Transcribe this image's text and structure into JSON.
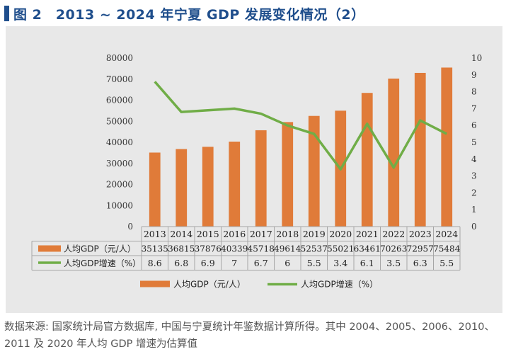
{
  "title": "图 2　2013 ~ 2024 年宁夏 GDP 发展变化情况（2）",
  "source_note": "数据来源: 国家统计局官方数据库, 中国与宁夏统计年鉴数据计算所得。其中 2004、2005、2006、2010、2011 及 2020 年人均 GDP 增速为估算值",
  "colors": {
    "bar": "#e07b39",
    "line": "#70ad47",
    "title": "#1f4e8c",
    "panel": "#e8e8e8"
  },
  "chart_data": {
    "type": "bar",
    "categories": [
      "2013",
      "2014",
      "2015",
      "2016",
      "2017",
      "2018",
      "2019",
      "2020",
      "2021",
      "2022",
      "2023",
      "2024"
    ],
    "series": [
      {
        "name": "人均GDP（元/人）",
        "type": "bar",
        "axis": "left",
        "values": [
          35135,
          36815,
          37876,
          40339,
          45718,
          49614,
          52537,
          55021,
          63461,
          70263,
          72957,
          75484
        ]
      },
      {
        "name": "人均GDP增速（%）",
        "type": "line",
        "axis": "right",
        "values": [
          8.6,
          6.8,
          6.9,
          7,
          6.7,
          6,
          5.5,
          3.4,
          6.1,
          3.5,
          6.3,
          5.5
        ],
        "labels": [
          "8.6",
          "6.8",
          "6.9",
          "7",
          "6.7",
          "6",
          "5.5",
          "3.4",
          "6.1",
          "3.5",
          "6.3",
          "5.5"
        ]
      }
    ],
    "y_left": {
      "min": 0,
      "max": 80000,
      "ticks": [
        "0",
        "10000",
        "20000",
        "30000",
        "40000",
        "50000",
        "60000",
        "70000",
        "80000"
      ]
    },
    "y_right": {
      "min": 0,
      "max": 10,
      "ticks": [
        "0",
        "1",
        "2",
        "3",
        "4",
        "5",
        "6",
        "7",
        "8",
        "9",
        "10"
      ]
    },
    "legend_position": "bottom",
    "data_table": true
  }
}
